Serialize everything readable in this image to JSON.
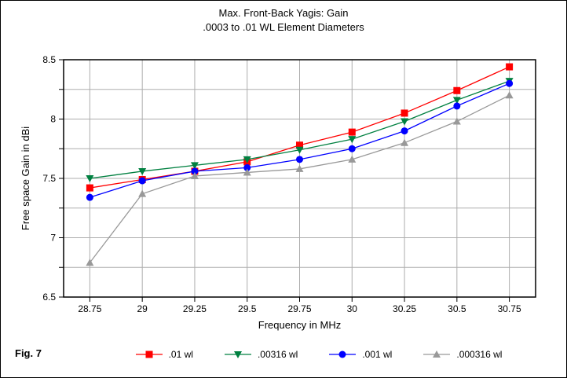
{
  "figure_label": "Fig. 7",
  "chart_data": {
    "type": "line",
    "title": "Max. Front-Back Yagis: Gain",
    "subtitle": ".0003 to .01 WL Element Diameters",
    "xlabel": "Frequency in MHz",
    "ylabel": "Free space Gain in dBi",
    "x": [
      28.75,
      29,
      29.25,
      29.5,
      29.75,
      30,
      30.25,
      30.5,
      30.75
    ],
    "xlim": [
      28.625,
      30.875
    ],
    "ylim": [
      6.5,
      8.5
    ],
    "ytick_step": 0.25,
    "ytick_label_step": 0.5,
    "grid": true,
    "legend_position": "bottom",
    "grid_color": "#adadad",
    "series": [
      {
        "name": ".01 wl",
        "color": "#ff0000",
        "marker": "square",
        "values": [
          7.42,
          7.49,
          7.56,
          7.64,
          7.78,
          7.89,
          8.05,
          8.24,
          8.44
        ]
      },
      {
        "name": ".00316 wl",
        "color": "#008040",
        "marker": "triangle-down",
        "values": [
          7.5,
          7.56,
          7.61,
          7.66,
          7.74,
          7.83,
          7.98,
          8.16,
          8.32
        ]
      },
      {
        "name": ".001 wl",
        "color": "#0000ff",
        "marker": "circle",
        "values": [
          7.34,
          7.48,
          7.56,
          7.59,
          7.66,
          7.75,
          7.9,
          8.11,
          8.3
        ]
      },
      {
        "name": ".000316 wl",
        "color": "#999999",
        "marker": "triangle-up",
        "values": [
          6.79,
          7.37,
          7.52,
          7.55,
          7.58,
          7.66,
          7.8,
          7.98,
          8.2
        ]
      }
    ]
  }
}
